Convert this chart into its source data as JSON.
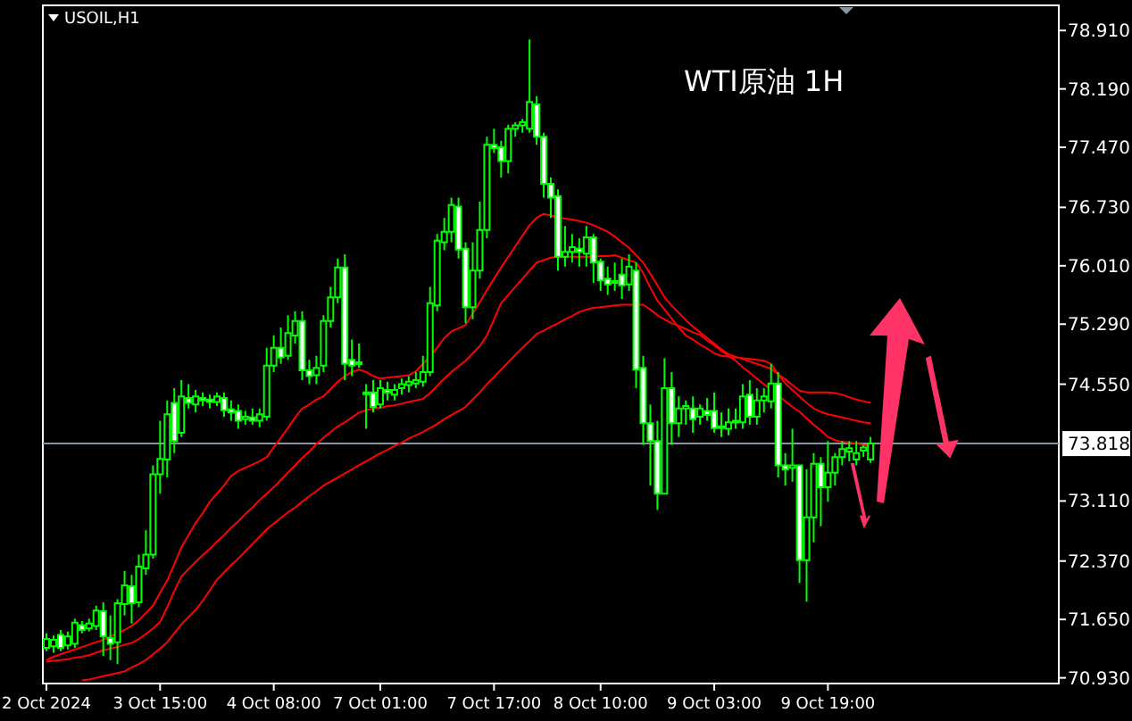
{
  "chart_data": {
    "type": "candlestick",
    "title": "WTI原油 1H",
    "subtitle": "USOIL,H1",
    "categories": [
      "2 Oct 2024",
      null,
      null,
      null,
      null,
      null,
      null,
      null,
      null,
      null,
      null,
      null,
      null,
      null,
      null,
      null,
      "3 Oct 15:00",
      null,
      null,
      null,
      null,
      null,
      null,
      null,
      null,
      null,
      null,
      null,
      null,
      null,
      null,
      null,
      "4 Oct 08:00",
      null,
      null,
      null,
      null,
      null,
      null,
      null,
      null,
      null,
      null,
      null,
      null,
      null,
      null,
      "7 Oct 01:00",
      null,
      null,
      null,
      null,
      null,
      null,
      null,
      null,
      null,
      null,
      null,
      null,
      null,
      null,
      null,
      "7 Oct 17:00",
      null,
      null,
      null,
      null,
      null,
      null,
      null,
      null,
      null,
      null,
      null,
      null,
      null,
      null,
      "8 Oct 10:00",
      null,
      null,
      null,
      null,
      null,
      null,
      null,
      null,
      null,
      null,
      null,
      null,
      null,
      null,
      null,
      "9 Oct 03:00",
      null,
      null,
      null,
      null,
      null,
      null,
      null,
      null,
      null,
      null,
      null,
      null,
      null,
      null,
      null,
      "9 Oct 19:00",
      null,
      null,
      null,
      null,
      null,
      null
    ],
    "ohlc": [
      [
        71.3,
        71.48,
        71.26,
        71.41
      ],
      [
        71.32,
        71.45,
        71.24,
        71.4
      ],
      [
        71.46,
        71.52,
        71.26,
        71.3
      ],
      [
        71.33,
        71.5,
        71.28,
        71.44
      ],
      [
        71.35,
        71.66,
        71.3,
        71.61
      ],
      [
        71.58,
        71.63,
        71.48,
        71.52
      ],
      [
        71.54,
        71.66,
        71.5,
        71.6
      ],
      [
        71.57,
        71.82,
        71.52,
        71.76
      ],
      [
        71.75,
        71.86,
        71.2,
        71.44
      ],
      [
        71.42,
        71.7,
        71.15,
        71.35
      ],
      [
        71.37,
        71.9,
        71.1,
        71.85
      ],
      [
        71.84,
        72.25,
        71.7,
        72.07
      ],
      [
        72.06,
        72.2,
        71.6,
        71.85
      ],
      [
        71.86,
        72.45,
        71.8,
        72.3
      ],
      [
        72.28,
        72.75,
        72.2,
        72.45
      ],
      [
        72.45,
        73.55,
        72.4,
        73.44
      ],
      [
        73.44,
        74.1,
        73.2,
        73.63
      ],
      [
        73.62,
        74.35,
        73.4,
        74.18
      ],
      [
        74.32,
        74.5,
        73.7,
        73.85
      ],
      [
        73.95,
        74.6,
        73.9,
        74.4
      ],
      [
        74.38,
        74.55,
        74.25,
        74.32
      ],
      [
        74.3,
        74.48,
        74.2,
        74.4
      ],
      [
        74.38,
        74.45,
        74.28,
        74.35
      ],
      [
        74.36,
        74.42,
        74.25,
        74.33
      ],
      [
        74.33,
        74.45,
        74.28,
        74.4
      ],
      [
        74.38,
        74.45,
        74.15,
        74.23
      ],
      [
        74.24,
        74.35,
        74.1,
        74.2
      ],
      [
        74.22,
        74.3,
        74.0,
        74.1
      ],
      [
        74.12,
        74.22,
        74.05,
        74.15
      ],
      [
        74.14,
        74.25,
        74.05,
        74.1
      ],
      [
        74.1,
        74.25,
        74.02,
        74.18
      ],
      [
        74.15,
        75.0,
        74.1,
        74.78
      ],
      [
        74.78,
        75.15,
        74.7,
        75.0
      ],
      [
        75.0,
        75.25,
        74.8,
        74.88
      ],
      [
        74.9,
        75.4,
        74.85,
        75.18
      ],
      [
        75.15,
        75.45,
        75.05,
        75.33
      ],
      [
        75.33,
        75.45,
        74.6,
        74.72
      ],
      [
        74.72,
        74.85,
        74.55,
        74.65
      ],
      [
        74.66,
        74.9,
        74.55,
        74.75
      ],
      [
        74.78,
        75.4,
        74.7,
        75.33
      ],
      [
        75.33,
        75.75,
        75.25,
        75.62
      ],
      [
        75.62,
        76.1,
        75.55,
        75.99
      ],
      [
        75.99,
        76.15,
        74.6,
        74.8
      ],
      [
        74.85,
        75.1,
        74.65,
        74.78
      ],
      [
        74.82,
        75.05,
        74.75,
        74.8
      ],
      [
        74.45,
        74.55,
        74.0,
        74.44
      ],
      [
        74.45,
        74.6,
        74.2,
        74.27
      ],
      [
        74.3,
        74.6,
        74.25,
        74.5
      ],
      [
        74.48,
        74.58,
        74.35,
        74.45
      ],
      [
        74.42,
        74.55,
        74.35,
        74.48
      ],
      [
        74.5,
        74.62,
        74.42,
        74.55
      ],
      [
        74.54,
        74.65,
        74.45,
        74.58
      ],
      [
        74.56,
        74.7,
        74.5,
        74.6
      ],
      [
        74.58,
        74.9,
        74.52,
        74.7
      ],
      [
        74.7,
        75.75,
        74.65,
        75.55
      ],
      [
        75.52,
        76.4,
        75.45,
        76.32
      ],
      [
        76.3,
        76.6,
        76.2,
        76.43
      ],
      [
        76.43,
        76.85,
        76.3,
        76.76
      ],
      [
        76.74,
        76.85,
        76.1,
        76.21
      ],
      [
        76.22,
        76.3,
        75.3,
        75.5
      ],
      [
        75.5,
        76.3,
        75.35,
        75.95
      ],
      [
        75.95,
        76.8,
        75.85,
        76.45
      ],
      [
        76.45,
        77.6,
        76.35,
        77.5
      ],
      [
        77.5,
        77.7,
        77.4,
        77.46
      ],
      [
        77.47,
        77.55,
        77.1,
        77.3
      ],
      [
        77.3,
        77.75,
        77.15,
        77.7
      ],
      [
        77.7,
        77.78,
        77.6,
        77.74
      ],
      [
        77.74,
        77.82,
        77.65,
        77.78
      ],
      [
        77.7,
        78.8,
        77.65,
        78.03
      ],
      [
        78.0,
        78.1,
        77.5,
        77.6
      ],
      [
        77.6,
        77.65,
        76.85,
        77.02
      ],
      [
        77.02,
        77.1,
        76.6,
        76.85
      ],
      [
        76.87,
        76.95,
        75.95,
        76.12
      ],
      [
        76.12,
        76.5,
        76.0,
        76.18
      ],
      [
        76.18,
        76.4,
        76.05,
        76.24
      ],
      [
        76.22,
        76.35,
        76.0,
        76.18
      ],
      [
        76.16,
        76.5,
        76.0,
        76.36
      ],
      [
        76.36,
        76.4,
        75.8,
        76.05
      ],
      [
        76.06,
        76.1,
        75.7,
        75.83
      ],
      [
        75.85,
        76.0,
        75.65,
        75.78
      ],
      [
        75.8,
        76.05,
        75.7,
        75.82
      ],
      [
        75.9,
        76.1,
        75.6,
        75.77
      ],
      [
        75.78,
        76.15,
        75.7,
        76.0
      ],
      [
        75.95,
        76.05,
        74.5,
        74.73
      ],
      [
        74.75,
        74.9,
        73.8,
        74.07
      ],
      [
        74.07,
        74.3,
        73.3,
        73.85
      ],
      [
        73.85,
        74.1,
        73.0,
        73.2
      ],
      [
        73.2,
        74.87,
        73.2,
        74.5
      ],
      [
        74.5,
        74.7,
        73.8,
        74.07
      ],
      [
        74.07,
        74.4,
        73.9,
        74.25
      ],
      [
        74.25,
        74.35,
        74.05,
        74.28
      ],
      [
        74.25,
        74.4,
        73.95,
        74.12
      ],
      [
        74.15,
        74.3,
        74.05,
        74.25
      ],
      [
        74.22,
        74.38,
        74.1,
        74.17
      ],
      [
        74.22,
        74.45,
        73.95,
        74.01
      ],
      [
        74.01,
        74.2,
        73.9,
        74.03
      ],
      [
        74.0,
        74.25,
        73.92,
        74.08
      ],
      [
        74.08,
        74.25,
        74.0,
        74.1
      ],
      [
        74.08,
        74.55,
        74.0,
        74.4
      ],
      [
        74.42,
        74.6,
        74.05,
        74.15
      ],
      [
        74.15,
        74.5,
        74.05,
        74.35
      ],
      [
        74.35,
        74.5,
        74.2,
        74.4
      ],
      [
        74.34,
        74.8,
        74.25,
        74.56
      ],
      [
        74.56,
        74.7,
        73.4,
        73.55
      ],
      [
        73.55,
        73.7,
        73.3,
        73.5
      ],
      [
        73.52,
        74.0,
        73.35,
        73.55
      ],
      [
        73.55,
        73.55,
        72.1,
        72.38
      ],
      [
        72.38,
        73.5,
        71.87,
        72.91
      ],
      [
        72.91,
        73.7,
        72.6,
        73.57
      ],
      [
        73.57,
        73.65,
        72.8,
        73.28
      ],
      [
        73.28,
        73.85,
        73.1,
        73.46
      ],
      [
        73.46,
        73.7,
        73.3,
        73.65
      ],
      [
        73.65,
        73.85,
        73.55,
        73.75
      ],
      [
        73.72,
        73.85,
        73.6,
        73.76
      ],
      [
        73.62,
        73.85,
        73.55,
        73.7
      ],
      [
        73.73,
        73.8,
        73.65,
        73.77
      ],
      [
        73.62,
        73.9,
        73.58,
        73.82
      ]
    ],
    "series": [
      {
        "type": "line",
        "color": "#ff0000",
        "values": [
          71.15,
          71.19,
          71.22,
          71.25,
          71.28,
          71.31,
          71.34,
          71.37,
          71.4,
          71.44,
          71.48,
          71.52,
          71.57,
          71.64,
          71.73,
          71.82,
          71.98,
          72.13,
          72.33,
          72.54,
          72.69,
          72.84,
          72.96,
          73.1,
          73.2,
          73.3,
          73.42,
          73.48,
          73.52,
          73.56,
          73.6,
          73.65,
          73.77,
          73.89,
          74.01,
          74.14,
          74.25,
          74.3,
          74.36,
          74.4,
          74.49,
          74.58,
          74.65,
          74.7,
          74.73,
          74.7,
          74.65,
          74.62,
          74.63,
          74.64,
          74.65,
          74.66,
          74.71,
          74.8,
          74.89,
          75.0,
          75.12,
          75.2,
          75.24,
          75.28,
          75.42,
          75.56,
          75.71,
          75.85,
          75.99,
          76.12,
          76.25,
          76.38,
          76.51,
          76.6,
          76.65,
          76.63,
          76.61,
          76.59,
          76.58,
          76.56,
          76.54,
          76.51,
          76.47,
          76.43,
          76.37,
          76.3,
          76.23,
          76.14,
          76.05,
          75.91,
          75.77,
          75.62,
          75.52,
          75.43,
          75.34,
          75.26,
          75.19,
          75.12,
          75.05,
          74.98,
          74.92,
          74.89,
          74.86,
          74.83,
          74.8,
          74.77,
          74.74,
          74.67,
          74.61,
          74.54,
          74.47,
          74.45,
          74.45,
          74.45,
          74.45,
          74.44,
          74.42,
          74.39,
          74.36,
          74.34,
          74.32
        ]
      },
      {
        "type": "line",
        "color": "#ff0000",
        "values": [
          71.13,
          71.14,
          71.15,
          71.16,
          71.18,
          71.19,
          71.21,
          71.24,
          71.27,
          71.29,
          71.31,
          71.34,
          71.36,
          71.41,
          71.47,
          71.54,
          71.62,
          71.8,
          72.0,
          72.18,
          72.27,
          72.36,
          72.44,
          72.52,
          72.61,
          72.69,
          72.78,
          72.86,
          72.95,
          73.03,
          73.12,
          73.2,
          73.28,
          73.37,
          73.46,
          73.55,
          73.64,
          73.72,
          73.81,
          73.89,
          73.96,
          74.03,
          74.08,
          74.14,
          74.2,
          74.23,
          74.25,
          74.26,
          74.28,
          74.29,
          74.31,
          74.33,
          74.35,
          74.37,
          74.44,
          74.53,
          74.62,
          74.7,
          74.77,
          74.84,
          74.93,
          75.02,
          75.15,
          75.35,
          75.55,
          75.65,
          75.75,
          75.85,
          75.95,
          76.05,
          76.08,
          76.11,
          76.12,
          76.12,
          76.12,
          76.12,
          76.12,
          76.12,
          76.13,
          76.13,
          76.14,
          76.11,
          76.08,
          76.05,
          75.92,
          75.74,
          75.58,
          75.47,
          75.36,
          75.25,
          75.15,
          75.1,
          75.04,
          74.99,
          74.93,
          74.9,
          74.89,
          74.88,
          74.87,
          74.86,
          74.85,
          74.84,
          74.8,
          74.67,
          74.56,
          74.48,
          74.4,
          74.32,
          74.25,
          74.21,
          74.18,
          74.16,
          74.14,
          74.12,
          74.1,
          74.08,
          74.07
        ]
      },
      {
        "type": "line",
        "color": "#ff0000",
        "values": [
          null,
          null,
          null,
          null,
          null,
          70.9,
          70.91,
          70.93,
          70.95,
          70.97,
          70.99,
          71.01,
          71.06,
          71.1,
          71.15,
          71.22,
          71.29,
          71.37,
          71.48,
          71.59,
          71.68,
          71.77,
          71.88,
          72.01,
          72.14,
          72.23,
          72.32,
          72.4,
          72.49,
          72.58,
          72.67,
          72.76,
          72.83,
          72.9,
          72.97,
          73.03,
          73.1,
          73.17,
          73.23,
          73.3,
          73.35,
          73.4,
          73.45,
          73.5,
          73.55,
          73.6,
          73.65,
          73.7,
          73.74,
          73.79,
          73.83,
          73.88,
          73.92,
          73.96,
          74.01,
          74.06,
          74.12,
          74.17,
          74.22,
          74.27,
          74.36,
          74.45,
          74.55,
          74.64,
          74.73,
          74.82,
          74.91,
          75.0,
          75.08,
          75.17,
          75.21,
          75.26,
          75.3,
          75.35,
          75.39,
          75.44,
          75.47,
          75.49,
          75.5,
          75.51,
          75.52,
          75.53,
          75.53,
          75.53,
          75.53,
          75.47,
          75.4,
          75.35,
          75.3,
          75.27,
          75.23,
          75.19,
          75.16,
          75.09,
          75.03,
          74.96,
          74.9,
          74.84,
          74.76,
          74.69,
          74.62,
          74.55,
          74.48,
          74.41,
          74.34,
          74.27,
          74.21,
          74.13,
          74.05,
          73.98,
          73.9,
          73.86,
          73.84,
          73.83,
          73.82,
          73.8,
          73.79
        ]
      }
    ],
    "ylim": [
      70.86,
      79.22
    ],
    "yticks": [
      {
        "value": 70.93,
        "label": "70.930"
      },
      {
        "value": 71.65,
        "label": "71.650"
      },
      {
        "value": 72.37,
        "label": "72.370"
      },
      {
        "value": 73.11,
        "label": "73.110"
      },
      {
        "value": 74.55,
        "label": "74.550"
      },
      {
        "value": 75.29,
        "label": "75.290"
      },
      {
        "value": 76.01,
        "label": "76.010"
      },
      {
        "value": 76.73,
        "label": "76.730"
      },
      {
        "value": 77.47,
        "label": "77.470"
      },
      {
        "value": 78.19,
        "label": "78.190"
      },
      {
        "value": 78.91,
        "label": "78.910"
      }
    ],
    "ref_lines": [
      {
        "axis": "y",
        "value": 73.818,
        "label": "73.818",
        "color": "#8a93a0"
      }
    ]
  }
}
